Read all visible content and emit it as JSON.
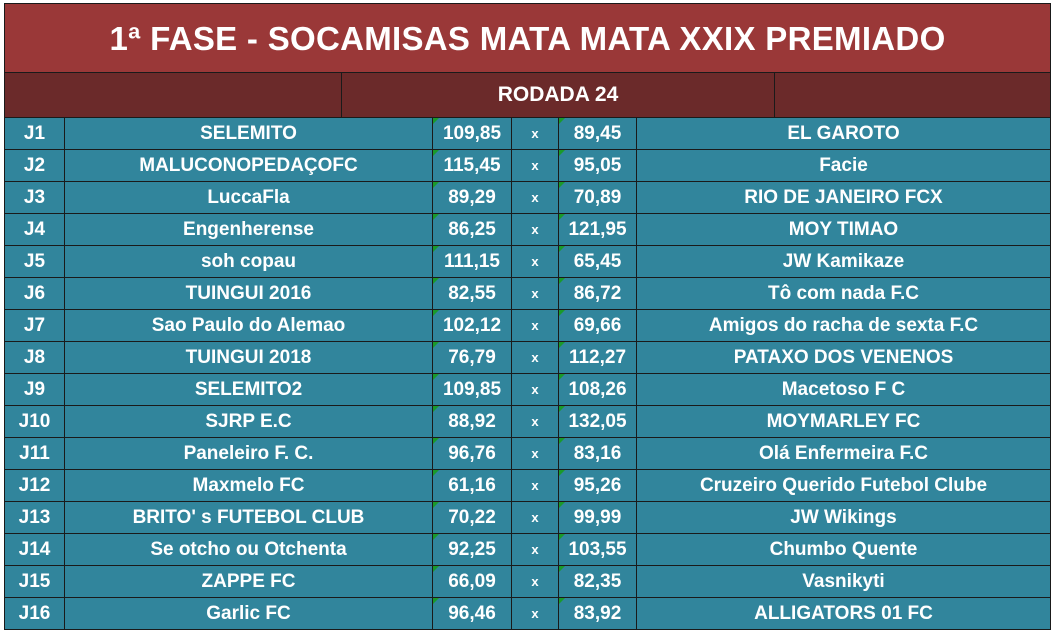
{
  "header": {
    "title": "1ª FASE - SOCAMISAS MATA MATA XXIX PREMIADO",
    "round": "RODADA 24"
  },
  "colors": {
    "title_bg": "#9a3838",
    "round_bg": "#6b2a2a",
    "row_bg": "#31859c",
    "text": "#ffffff"
  },
  "matches": [
    {
      "game": "J1",
      "home": "SELEMITO",
      "home_score": "109,85",
      "sep": "x",
      "away_score": "89,45",
      "away": "EL GAROTO"
    },
    {
      "game": "J2",
      "home": "MALUCONOPEDAÇOFC",
      "home_score": "115,45",
      "sep": "x",
      "away_score": "95,05",
      "away": "Facie"
    },
    {
      "game": "J3",
      "home": "LuccaFla",
      "home_score": "89,29",
      "sep": "x",
      "away_score": "70,89",
      "away": "RIO DE JANEIRO FCX"
    },
    {
      "game": "J4",
      "home": "Engenherense",
      "home_score": "86,25",
      "sep": "x",
      "away_score": "121,95",
      "away": "MOY TIMAO"
    },
    {
      "game": "J5",
      "home": "soh copau",
      "home_score": "111,15",
      "sep": "x",
      "away_score": "65,45",
      "away": "JW Kamikaze"
    },
    {
      "game": "J6",
      "home": "TUINGUI 2016",
      "home_score": "82,55",
      "sep": "x",
      "away_score": "86,72",
      "away": "Tô com nada F.C"
    },
    {
      "game": "J7",
      "home": "Sao Paulo do Alemao",
      "home_score": "102,12",
      "sep": "x",
      "away_score": "69,66",
      "away": "Amigos do racha de sexta F.C"
    },
    {
      "game": "J8",
      "home": "TUINGUI 2018",
      "home_score": "76,79",
      "sep": "x",
      "away_score": "112,27",
      "away": "PATAXO DOS VENENOS"
    },
    {
      "game": "J9",
      "home": "SELEMITO2",
      "home_score": "109,85",
      "sep": "x",
      "away_score": "108,26",
      "away": "Macetoso F C"
    },
    {
      "game": "J10",
      "home": "SJRP E.C",
      "home_score": "88,92",
      "sep": "x",
      "away_score": "132,05",
      "away": "MOYMARLEY FC"
    },
    {
      "game": "J11",
      "home": "Paneleiro F. C.",
      "home_score": "96,76",
      "sep": "x",
      "away_score": "83,16",
      "away": "Olá Enfermeira F.C"
    },
    {
      "game": "J12",
      "home": "Maxmelo FC",
      "home_score": "61,16",
      "sep": "x",
      "away_score": "95,26",
      "away": "Cruzeiro Querido Futebol Clube"
    },
    {
      "game": "J13",
      "home": "BRITO' s FUTEBOL CLUB",
      "home_score": "70,22",
      "sep": "x",
      "away_score": "99,99",
      "away": "JW Wikings"
    },
    {
      "game": "J14",
      "home": "Se otcho ou Otchenta",
      "home_score": "92,25",
      "sep": "x",
      "away_score": "103,55",
      "away": "Chumbo Quente"
    },
    {
      "game": "J15",
      "home": "ZAPPE FC",
      "home_score": "66,09",
      "sep": "x",
      "away_score": "82,35",
      "away": "Vasnikyti"
    },
    {
      "game": "J16",
      "home": "Garlic FC",
      "home_score": "96,46",
      "sep": "x",
      "away_score": "83,92",
      "away": "ALLIGATORS 01 FC"
    }
  ]
}
